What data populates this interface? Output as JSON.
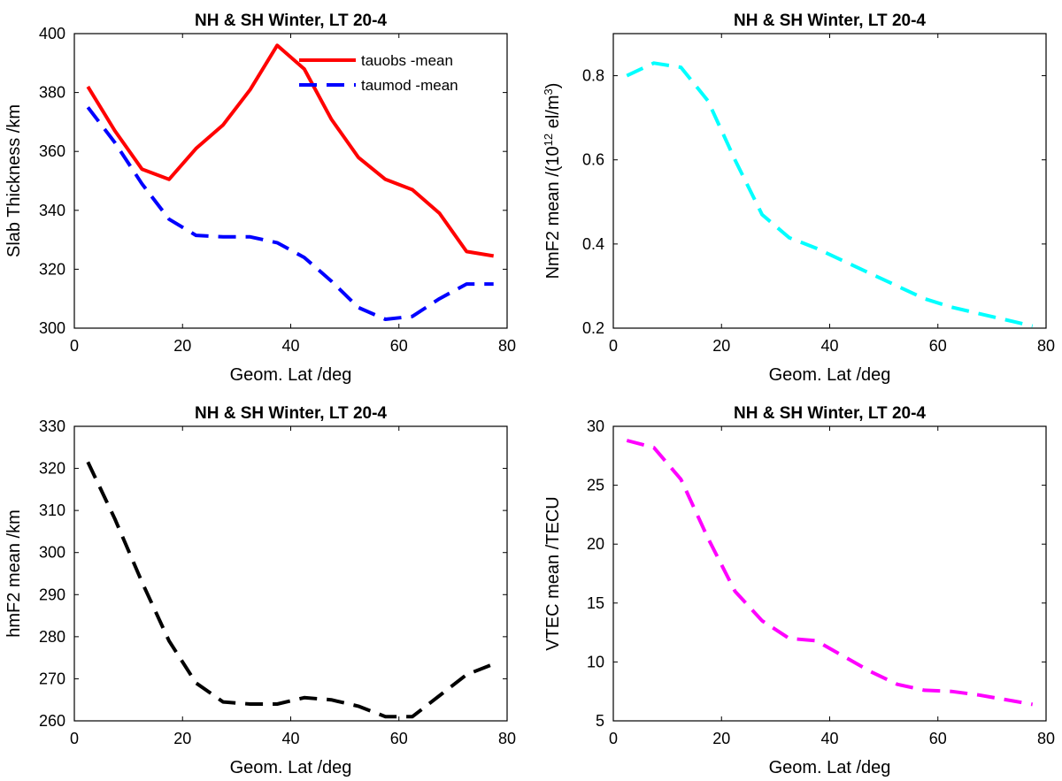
{
  "chart_data": [
    {
      "type": "line",
      "title": "NH & SH Winter, LT 20-4",
      "xlabel": "Geom. Lat /deg",
      "ylabel": "Slab Thickness /km",
      "xlim": [
        0,
        80
      ],
      "ylim": [
        300,
        400
      ],
      "xticks": [
        0,
        20,
        40,
        60,
        80
      ],
      "yticks": [
        300,
        320,
        340,
        360,
        380,
        400
      ],
      "legend_position": "top-right",
      "series": [
        {
          "name": "tauobs -mean",
          "color": "#ff0000",
          "dash": "solid",
          "x": [
            2.5,
            7.5,
            12.5,
            17.5,
            22.5,
            27.5,
            32.5,
            37.5,
            42.5,
            47.5,
            52.5,
            57.5,
            62.5,
            67.5,
            72.5,
            77.5
          ],
          "values": [
            382,
            367,
            354,
            350.5,
            361,
            369,
            381,
            396,
            388,
            371,
            358,
            350.5,
            347,
            339,
            326,
            324.5
          ]
        },
        {
          "name": "taumod -mean",
          "color": "#0000ff",
          "dash": "dashed",
          "x": [
            2.5,
            7.5,
            12.5,
            17.5,
            22.5,
            27.5,
            32.5,
            37.5,
            42.5,
            47.5,
            52.5,
            57.5,
            62.5,
            67.5,
            72.5,
            77.5
          ],
          "values": [
            375,
            363,
            349,
            337,
            331.5,
            331,
            331,
            329,
            324,
            316,
            307,
            303,
            304,
            310,
            315,
            315
          ]
        }
      ]
    },
    {
      "type": "line",
      "title": "NH & SH Winter, LT 20-4",
      "xlabel": "Geom. Lat /deg",
      "ylabel_parts": [
        "NmF2 mean /(10",
        "12",
        " el/m",
        "3",
        ")"
      ],
      "xlim": [
        0,
        80
      ],
      "ylim": [
        0.2,
        0.9
      ],
      "xticks": [
        0,
        20,
        40,
        60,
        80
      ],
      "yticks": [
        0.2,
        0.4,
        0.6,
        0.8
      ],
      "series": [
        {
          "name": "NmF2 mean",
          "color": "#00ffff",
          "dash": "dashed",
          "x": [
            2.5,
            7.5,
            12.5,
            17.5,
            22.5,
            27.5,
            32.5,
            37.5,
            42.5,
            47.5,
            52.5,
            57.5,
            62.5,
            67.5,
            72.5,
            77.5
          ],
          "values": [
            0.8,
            0.83,
            0.82,
            0.74,
            0.6,
            0.47,
            0.415,
            0.39,
            0.36,
            0.33,
            0.3,
            0.27,
            0.25,
            0.235,
            0.22,
            0.205
          ]
        }
      ]
    },
    {
      "type": "line",
      "title": "NH & SH Winter, LT 20-4",
      "xlabel": "Geom. Lat /deg",
      "ylabel": "hmF2 mean /km",
      "xlim": [
        0,
        80
      ],
      "ylim": [
        260,
        330
      ],
      "xticks": [
        0,
        20,
        40,
        60,
        80
      ],
      "yticks": [
        260,
        270,
        280,
        290,
        300,
        310,
        320,
        330
      ],
      "series": [
        {
          "name": "hmF2 mean",
          "color": "#000000",
          "dash": "dashed",
          "x": [
            2.5,
            7.5,
            12.5,
            17.5,
            22.5,
            27.5,
            32.5,
            37.5,
            42.5,
            47.5,
            52.5,
            57.5,
            62.5,
            67.5,
            72.5,
            77.5
          ],
          "values": [
            321.5,
            308,
            293,
            279,
            269,
            264.5,
            264,
            264,
            265.5,
            265,
            263.5,
            261,
            261,
            266,
            271,
            273.5
          ]
        }
      ]
    },
    {
      "type": "line",
      "title": "NH & SH Winter, LT 20-4",
      "xlabel": "Geom. Lat /deg",
      "ylabel": "VTEC mean /TECU",
      "xlim": [
        0,
        80
      ],
      "ylim": [
        5,
        30
      ],
      "xticks": [
        0,
        20,
        40,
        60,
        80
      ],
      "yticks": [
        5,
        10,
        15,
        20,
        25,
        30
      ],
      "series": [
        {
          "name": "VTEC mean",
          "color": "#ff00ff",
          "dash": "dashed",
          "x": [
            2.5,
            7.5,
            12.5,
            17.5,
            22.5,
            27.5,
            32.5,
            37.5,
            42.5,
            47.5,
            52.5,
            57.5,
            62.5,
            67.5,
            72.5,
            77.5
          ],
          "values": [
            28.8,
            28.2,
            25.5,
            20.5,
            16,
            13.5,
            12,
            11.8,
            10.5,
            9.2,
            8.1,
            7.6,
            7.5,
            7.2,
            6.8,
            6.4
          ]
        }
      ]
    }
  ]
}
